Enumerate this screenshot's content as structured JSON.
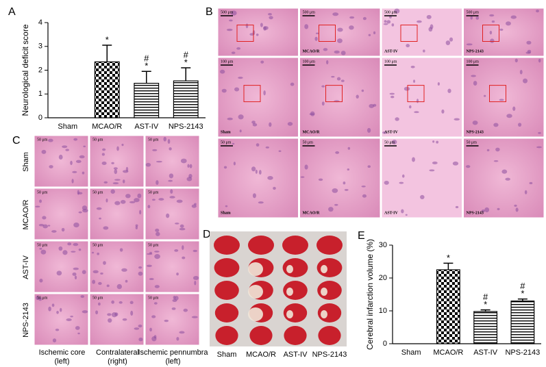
{
  "chart_data": [
    {
      "type": "bar",
      "panel": "A",
      "ylabel": "Neurological deficit score",
      "categories": [
        "Sham",
        "MCAO/R",
        "AST-IV",
        "NPS-2143"
      ],
      "values": [
        0,
        2.35,
        1.45,
        1.55
      ],
      "errors": [
        null,
        0.7,
        0.5,
        0.55
      ],
      "markers": [
        null,
        [
          "*"
        ],
        [
          "#",
          "*"
        ],
        [
          "#",
          "*"
        ]
      ],
      "patterns": [
        "solid",
        "checker",
        "stripes",
        "stripes"
      ],
      "color": "#000000",
      "ylim": [
        0,
        4
      ],
      "yticks": [
        0,
        1,
        2,
        3,
        4
      ]
    },
    {
      "type": "bar",
      "panel": "E",
      "ylabel": "Cerebral infarction volume (%)",
      "categories": [
        "Sham",
        "MCAO/R",
        "AST-IV",
        "NPS-2143"
      ],
      "values": [
        0,
        22.5,
        9.8,
        13
      ],
      "errors": [
        null,
        2,
        0.5,
        0.6
      ],
      "markers": [
        null,
        [
          "*"
        ],
        [
          "#",
          "*"
        ],
        [
          "#",
          "*"
        ]
      ],
      "patterns": [
        "solid",
        "checker",
        "stripes",
        "stripes"
      ],
      "color": "#000000",
      "ylim": [
        0,
        30
      ],
      "yticks": [
        0,
        10,
        20,
        30
      ]
    }
  ],
  "panel_b": {
    "label": "B",
    "scales": [
      "500 μm",
      "100 μm",
      "50 μm"
    ],
    "groups": [
      "Sham",
      "MCAO/R",
      "AST-IV",
      "NPS-2143"
    ]
  },
  "panel_c": {
    "label": "C",
    "rows": [
      "Sham",
      "MCAO/R",
      "AST-IV",
      "NPS-2143"
    ],
    "columns": [
      [
        "Ischemic core",
        "(left)"
      ],
      [
        "Contralateral",
        "(right)"
      ],
      [
        "Ischemic pennumbra",
        "(left)"
      ]
    ],
    "scale": "50 μm"
  },
  "panel_d": {
    "label": "D",
    "groups": [
      "Sham",
      "MCAO/R",
      "AST-IV",
      "NPS-2143"
    ]
  }
}
